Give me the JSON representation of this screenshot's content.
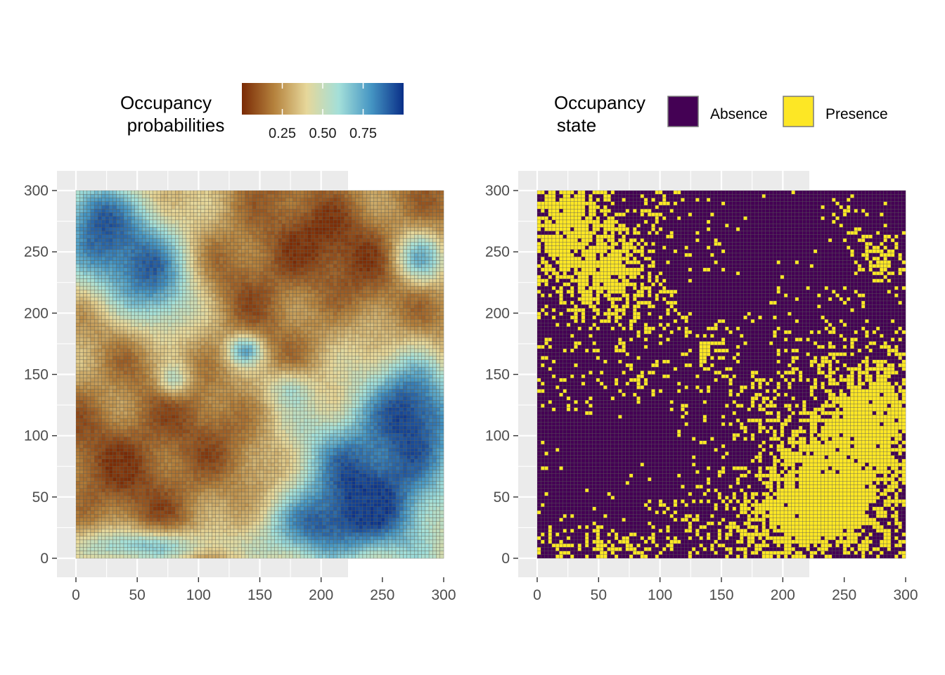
{
  "chart_data": [
    {
      "type": "heatmap",
      "title": "",
      "xlabel": "",
      "ylabel": "",
      "xlim": [
        0,
        300
      ],
      "ylim": [
        0,
        300
      ],
      "x_ticks": [
        "0",
        "50",
        "100",
        "150",
        "200",
        "250",
        "300"
      ],
      "y_ticks": [
        "0",
        "50",
        "100",
        "150",
        "200",
        "250",
        "300"
      ],
      "grid": true,
      "legend": {
        "title_line1": "Occupancy",
        "title_line2": "probabilities",
        "placement": "top",
        "type": "colorbar",
        "range": [
          0,
          1
        ],
        "tick_labels": [
          "0.25",
          "0.50",
          "0.75"
        ],
        "tick_values": [
          0.25,
          0.5,
          0.75
        ],
        "colors": [
          "#7a2a05",
          "#b5823d",
          "#e6d79a",
          "#a3dfd9",
          "#4595c3",
          "#0a2f88"
        ]
      },
      "grid_resolution": "approx. 100 x 100 cells over 0-300",
      "description_regions": [
        {
          "region": "top-left (x 0-80, y 200-300)",
          "level": "high (~0.7-0.9)"
        },
        {
          "region": "top-right (x 100-300, y 200-300)",
          "level": "low (~0.05-0.25)"
        },
        {
          "region": "centre-left (x 0-150, y 30-180)",
          "level": "low (~0.05-0.2)"
        },
        {
          "region": "small ring (x ~125-150, y ~160-180)",
          "level": "moderate-high (~0.6)"
        },
        {
          "region": "bottom-right (x 170-300, y 0-150)",
          "level": "high (~0.7-0.95)"
        },
        {
          "region": "bottom strip (x 0-150, y 0-20)",
          "level": "moderate (~0.5-0.7)"
        }
      ]
    },
    {
      "type": "heatmap",
      "title": "",
      "xlabel": "",
      "ylabel": "",
      "xlim": [
        0,
        300
      ],
      "ylim": [
        0,
        300
      ],
      "x_ticks": [
        "0",
        "50",
        "100",
        "150",
        "200",
        "250",
        "300"
      ],
      "y_ticks": [
        "0",
        "50",
        "100",
        "150",
        "200",
        "250",
        "300"
      ],
      "grid": true,
      "legend": {
        "title_line1": "Occupancy",
        "title_line2": "state",
        "placement": "top",
        "type": "discrete",
        "entries": [
          {
            "label": "Absence",
            "color": "#440154"
          },
          {
            "label": "Presence",
            "color": "#fde725"
          }
        ]
      },
      "cell_border_color": "#595959",
      "grid_resolution": "approx. 100 x 100 cells over 0-300",
      "description": "binary presence/absence map; presence dense in top-left and bottom-right, scattered elsewhere"
    }
  ]
}
